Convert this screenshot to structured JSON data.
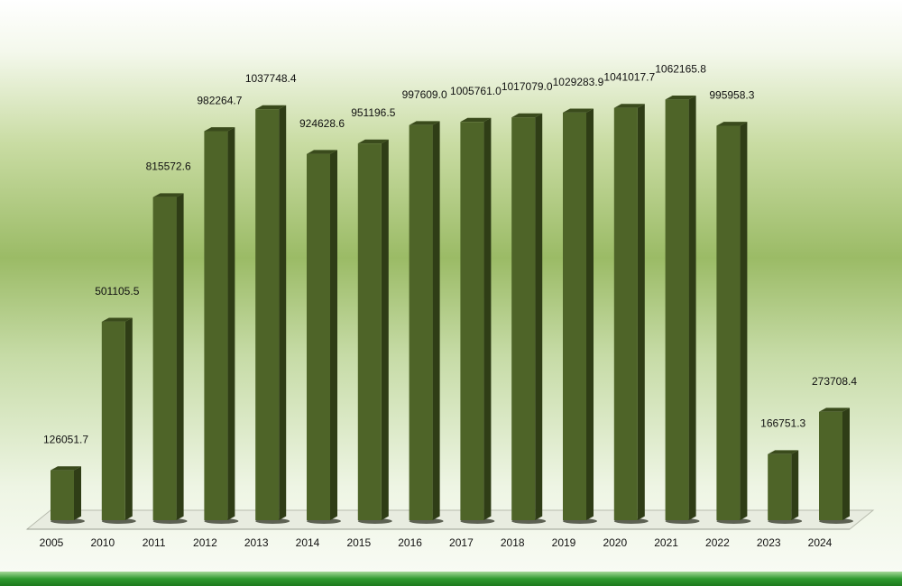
{
  "chart_data": {
    "type": "bar",
    "title": "",
    "xlabel": "",
    "ylabel": "",
    "ylim": [
      0,
      1120000
    ],
    "grid": false,
    "categories": [
      "2005",
      "2010",
      "2011",
      "2012",
      "2013",
      "2014",
      "2015",
      "2016",
      "2017",
      "2018",
      "2019",
      "2020",
      "2021",
      "2022",
      "2023",
      "2024"
    ],
    "values": [
      126051.7,
      501105.5,
      815572.6,
      982264.7,
      1037748.4,
      924628.6,
      951196.5,
      997609.0,
      1005761.0,
      1017079.0,
      1029283.9,
      1041017.7,
      1062165.8,
      995958.3,
      166751.3,
      273708.4
    ],
    "value_labels": [
      "126051.7",
      "501105.5",
      "815572.6",
      "982264.7",
      "1037748.4",
      "924628.6",
      "951196.5",
      "997609.0",
      "1005761.0",
      "1017079.0",
      "1029283.9",
      "1041017.7",
      "1062165.8",
      "995958.3",
      "166751.3",
      "273708.4"
    ],
    "colors": {
      "bar_front": "#4e6428",
      "bar_side": "#2f3d16",
      "bar_top": "#3a4b1c",
      "floor": "#e8ece0",
      "bottom_band": "#2f9a2f"
    }
  }
}
